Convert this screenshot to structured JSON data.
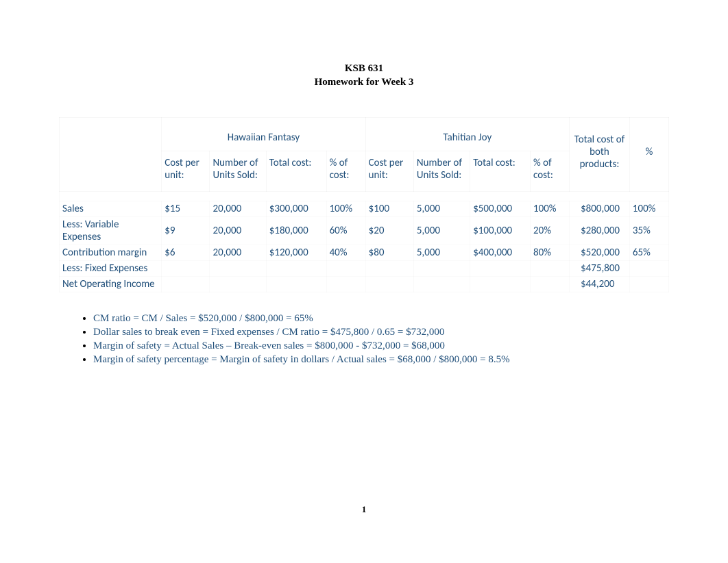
{
  "heading": {
    "line1": "KSB 631",
    "line2": "Homework for Week 3"
  },
  "table": {
    "group_headers": {
      "product1": "Hawaiian Fantasy",
      "product2": "Tahitian Joy",
      "total_label": "Total cost of both products:",
      "pct_label": "%"
    },
    "sub_headers": {
      "cost_per_unit": "Cost per unit:",
      "units_sold": "Number of Units Sold:",
      "total_cost": "Total cost:",
      "pct_of_cost": "% of cost:"
    },
    "rows": [
      {
        "label": "Sales",
        "p1_cost": "$15",
        "p1_units": "20,000",
        "p1_total": "$300,000",
        "p1_pct": "100%",
        "p2_cost": "$100",
        "p2_units": "5,000",
        "p2_total": "$500,000",
        "p2_pct": "100%",
        "grand_total": "$800,000",
        "grand_pct": "100%"
      },
      {
        "label": "Less: Variable Expenses",
        "p1_cost": "$9",
        "p1_units": "20,000",
        "p1_total": "$180,000",
        "p1_pct": "60%",
        "p2_cost": "$20",
        "p2_units": "5,000",
        "p2_total": "$100,000",
        "p2_pct": "20%",
        "grand_total": "$280,000",
        "grand_pct": "35%"
      },
      {
        "label": "Contribution margin",
        "p1_cost": "$6",
        "p1_units": "20,000",
        "p1_total": "$120,000",
        "p1_pct": "40%",
        "p2_cost": "$80",
        "p2_units": "5,000",
        "p2_total": "$400,000",
        "p2_pct": "80%",
        "grand_total": "$520,000",
        "grand_pct": "65%"
      },
      {
        "label": "Less: Fixed Expenses",
        "p1_cost": "",
        "p1_units": "",
        "p1_total": "",
        "p1_pct": "",
        "p2_cost": "",
        "p2_units": "",
        "p2_total": "",
        "p2_pct": "",
        "grand_total": "$475,800",
        "grand_pct": ""
      },
      {
        "label": "Net Operating Income",
        "p1_cost": "",
        "p1_units": "",
        "p1_total": "",
        "p1_pct": "",
        "p2_cost": "",
        "p2_units": "",
        "p2_total": "",
        "p2_pct": "",
        "grand_total": "$44,200",
        "grand_pct": ""
      }
    ],
    "style": {
      "text_color": "#1f4e79",
      "border_color": "rgba(0,0,0,0.03)",
      "font_size": 15
    }
  },
  "bullets": [
    "CM ratio = CM / Sales = $520,000 / $800,000 = 65%",
    "Dollar sales to break even = Fixed expenses / CM ratio = $475,800 / 0.65 = $732,000",
    "Margin of safety = Actual Sales – Break-even sales = $800,000 - $732,000 = $68,000",
    "Margin of safety percentage = Margin of safety in dollars / Actual sales = $68,000 / $800,000 = 8.5%"
  ],
  "page_number": "1"
}
